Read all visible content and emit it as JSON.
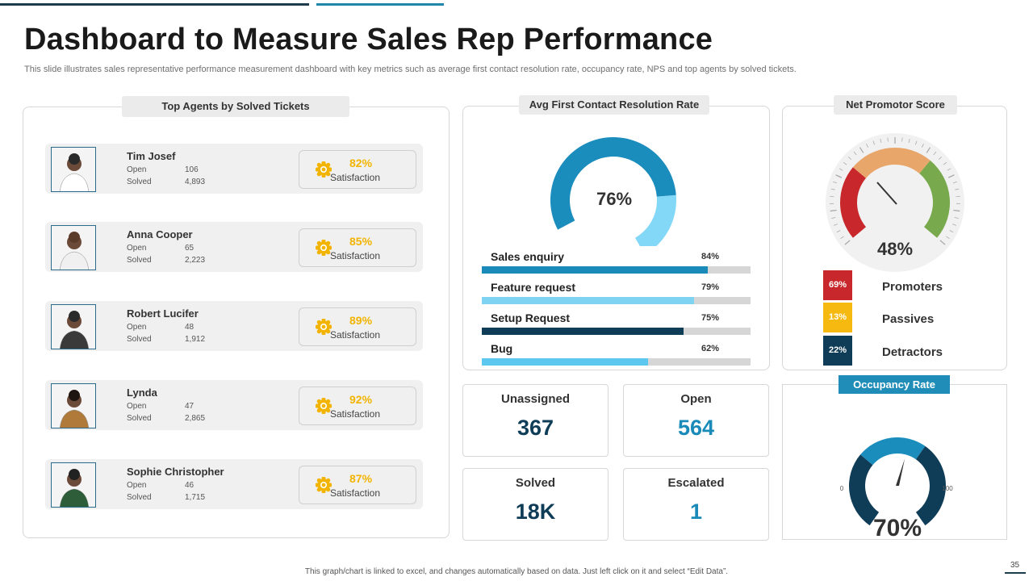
{
  "title": "Dashboard to Measure Sales Rep Performance",
  "subtitle": "This slide illustrates sales representative performance measurement dashboard with key metrics such as average first contact resolution rate, occupancy rate, NPS and top agents by solved tickets.",
  "agents_panel": {
    "title": "Top Agents by Solved  Tickets",
    "open_label": "Open",
    "solved_label": "Solved",
    "satisfaction_label": "Satisfaction",
    "agents": [
      {
        "name": "Tim Josef",
        "open": "106",
        "solved": "4,893",
        "satisfaction": "82%"
      },
      {
        "name": "Anna Cooper",
        "open": "65",
        "solved": "2,223",
        "satisfaction": "85%"
      },
      {
        "name": "Robert Lucifer",
        "open": "48",
        "solved": "1,912",
        "satisfaction": "89%"
      },
      {
        "name": "Lynda",
        "open": "47",
        "solved": "2,865",
        "satisfaction": "92%"
      },
      {
        "name": "Sophie Christopher",
        "open": "46",
        "solved": "1,715",
        "satisfaction": "87%"
      }
    ]
  },
  "resolution_panel": {
    "title": "Avg First Contact Resolution Rate",
    "value": "76%",
    "value_fraction": 0.76,
    "bars": [
      {
        "label": "Sales enquiry",
        "pct": "84%",
        "value": 84,
        "color": "#1a8bb8"
      },
      {
        "label": "Feature request",
        "pct": "79%",
        "value": 79,
        "color": "#7fd3f2"
      },
      {
        "label": "Setup Request",
        "pct": "75%",
        "value": 75,
        "color": "#0f3d57"
      },
      {
        "label": "Bug",
        "pct": "62%",
        "value": 62,
        "color": "#5cc8f0"
      }
    ]
  },
  "tiles": [
    {
      "label": "Unassigned",
      "value": "367",
      "color": "#0f3d57"
    },
    {
      "label": "Open",
      "value": "564",
      "color": "#1a8bb8"
    },
    {
      "label": "Solved",
      "value": "18K",
      "color": "#0f3d57"
    },
    {
      "label": "Escalated",
      "value": "1",
      "color": "#1a8bb8"
    }
  ],
  "nps_panel": {
    "title": "Net Promotor Score",
    "value": "48%",
    "value_fraction": 0.48,
    "items": [
      {
        "pct": "69%",
        "label": "Promoters",
        "color": "#c8282b"
      },
      {
        "pct": "13%",
        "label": "Passives",
        "color": "#f5b90f"
      },
      {
        "pct": "22%",
        "label": "Detractors",
        "color": "#0f3d57"
      }
    ]
  },
  "occupancy_panel": {
    "title": "Occupancy Rate",
    "value": "70%",
    "value_fraction": 0.7,
    "min": "0",
    "max": "100"
  },
  "footer": "This graph/chart is linked to excel, and changes automatically based on data. Just left click on it and select “Edit Data”.",
  "page_number": "35",
  "colors": {
    "dark": "#0f3d57",
    "accent": "#1a8bb8",
    "gold": "#f2b400"
  }
}
